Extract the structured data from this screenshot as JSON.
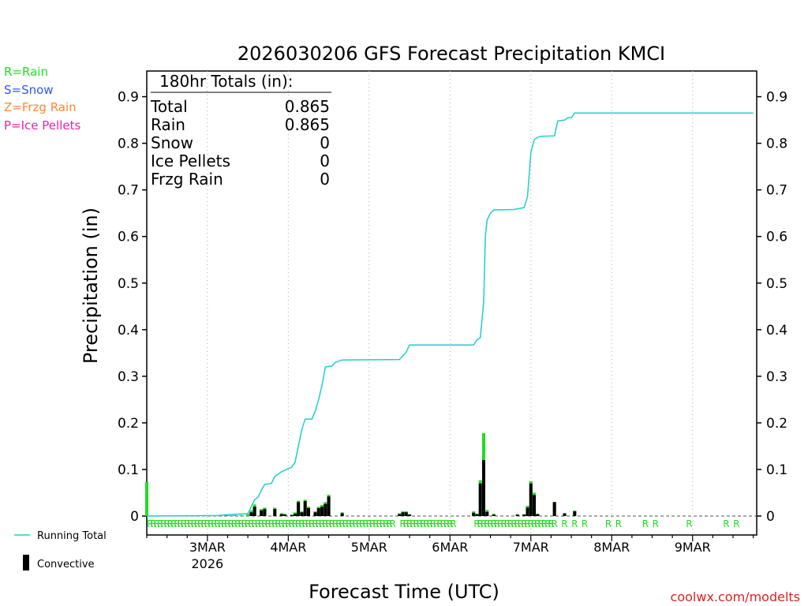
{
  "chart_data": {
    "type": "bar+line",
    "title": "2026030206 GFS Forecast Precipitation KMCI",
    "xlabel": "Forecast Time (UTC)",
    "ylabel": "Precipitation (in)",
    "ylim": [
      0,
      0.95
    ],
    "yticks": [
      0,
      0.1,
      0.2,
      0.3,
      0.4,
      0.5,
      0.6,
      0.7,
      0.8,
      0.9
    ],
    "ytick_labels": [
      "0",
      "0.1",
      "0.2",
      "0.3",
      "0.4",
      "0.5",
      "0.6",
      "0.7",
      "0.8",
      "0.9"
    ],
    "x_range_hours": [
      0,
      180
    ],
    "x_ticks": [
      {
        "hour": 18,
        "label": "3MAR",
        "sublabel": "2026"
      },
      {
        "hour": 42,
        "label": "4MAR",
        "sublabel": ""
      },
      {
        "hour": 66,
        "label": "5MAR",
        "sublabel": ""
      },
      {
        "hour": 90,
        "label": "6MAR",
        "sublabel": ""
      },
      {
        "hour": 114,
        "label": "7MAR",
        "sublabel": ""
      },
      {
        "hour": 138,
        "label": "8MAR",
        "sublabel": ""
      },
      {
        "hour": 162,
        "label": "9MAR",
        "sublabel": ""
      }
    ],
    "grid": "vertical-dotted",
    "legend_left": [
      {
        "label": "R=Rain",
        "color": "#22dd22"
      },
      {
        "label": "S=Snow",
        "color": "#3355ff"
      },
      {
        "label": "Z=Frzg Rain",
        "color": "#ff8833"
      },
      {
        "label": "P=Ice Pellets",
        "color": "#ee22aa"
      }
    ],
    "legend_bottom": [
      {
        "label": "Running Total",
        "kind": "line",
        "color": "#22cccc"
      },
      {
        "label": "Convective",
        "kind": "bar",
        "color": "#000000"
      }
    ],
    "totals_box": {
      "header": "180hr Totals (in):",
      "rows": [
        {
          "label": "Total",
          "value": "0.865"
        },
        {
          "label": "Rain",
          "value": "0.865"
        },
        {
          "label": "Snow",
          "value": "0"
        },
        {
          "label": "Ice Pellets",
          "value": "0"
        },
        {
          "label": "Frzg Rain",
          "value": "0"
        }
      ]
    },
    "running_total": [
      [
        0,
        0
      ],
      [
        21,
        0.001
      ],
      [
        24,
        0.003
      ],
      [
        30,
        0.005
      ],
      [
        31,
        0.02
      ],
      [
        32,
        0.035
      ],
      [
        33,
        0.04
      ],
      [
        34,
        0.055
      ],
      [
        35,
        0.068
      ],
      [
        37,
        0.07
      ],
      [
        38,
        0.085
      ],
      [
        40,
        0.095
      ],
      [
        42,
        0.102
      ],
      [
        43,
        0.105
      ],
      [
        44,
        0.115
      ],
      [
        45,
        0.15
      ],
      [
        46,
        0.185
      ],
      [
        47,
        0.208
      ],
      [
        49,
        0.208
      ],
      [
        50,
        0.225
      ],
      [
        51,
        0.25
      ],
      [
        52,
        0.28
      ],
      [
        53,
        0.32
      ],
      [
        55,
        0.322
      ],
      [
        56,
        0.33
      ],
      [
        58,
        0.335
      ],
      [
        75,
        0.336
      ],
      [
        77,
        0.352
      ],
      [
        78,
        0.367
      ],
      [
        84,
        0.367
      ],
      [
        97,
        0.367
      ],
      [
        98,
        0.378
      ],
      [
        99,
        0.383
      ],
      [
        100,
        0.46
      ],
      [
        100.5,
        0.6
      ],
      [
        101,
        0.635
      ],
      [
        102,
        0.65
      ],
      [
        103,
        0.657
      ],
      [
        109,
        0.658
      ],
      [
        112,
        0.662
      ],
      [
        113,
        0.685
      ],
      [
        114,
        0.78
      ],
      [
        115,
        0.808
      ],
      [
        116,
        0.813
      ],
      [
        117,
        0.815
      ],
      [
        121,
        0.816
      ],
      [
        122,
        0.848
      ],
      [
        124,
        0.85
      ],
      [
        125,
        0.855
      ],
      [
        126,
        0.855
      ],
      [
        127,
        0.865
      ],
      [
        180,
        0.865
      ]
    ],
    "precip_bars": [
      [
        0,
        0.073,
        0
      ],
      [
        22,
        0.002,
        0
      ],
      [
        24,
        0.002,
        0
      ],
      [
        26,
        0.002,
        0
      ],
      [
        28,
        0.002,
        0
      ],
      [
        30,
        0.005,
        0
      ],
      [
        31,
        0.012,
        0.008
      ],
      [
        32,
        0.025,
        0.02
      ],
      [
        34,
        0.015,
        0.012
      ],
      [
        35,
        0.018,
        0.015
      ],
      [
        38,
        0.018,
        0.015
      ],
      [
        40,
        0.006,
        0.004
      ],
      [
        41,
        0.005,
        0.003
      ],
      [
        43,
        0.003,
        0.002
      ],
      [
        44,
        0.008,
        0.005
      ],
      [
        45,
        0.033,
        0.03
      ],
      [
        46,
        0.01,
        0.008
      ],
      [
        47,
        0.035,
        0.032
      ],
      [
        48,
        0.02,
        0.017
      ],
      [
        50,
        0.01,
        0.008
      ],
      [
        51,
        0.02,
        0.017
      ],
      [
        52,
        0.024,
        0.02
      ],
      [
        53,
        0.03,
        0.026
      ],
      [
        54,
        0.046,
        0.042
      ],
      [
        58,
        0.008,
        0.006
      ],
      [
        75,
        0.006,
        0.004
      ],
      [
        76,
        0.01,
        0.008
      ],
      [
        77,
        0.01,
        0.008
      ],
      [
        78,
        0.004,
        0.003
      ],
      [
        97,
        0.01,
        0.007
      ],
      [
        98,
        0.005,
        0.004
      ],
      [
        99,
        0.077,
        0.07
      ],
      [
        100,
        0.178,
        0.12
      ],
      [
        101,
        0.013,
        0.009
      ],
      [
        103,
        0.005,
        0.003
      ],
      [
        110,
        0.004,
        0.003
      ],
      [
        112,
        0.004,
        0.003
      ],
      [
        113,
        0.022,
        0.018
      ],
      [
        114,
        0.075,
        0.07
      ],
      [
        115,
        0.05,
        0.045
      ],
      [
        116,
        0.005,
        0.004
      ],
      [
        121,
        0.03,
        0.03
      ],
      [
        124,
        0.006,
        0.006
      ],
      [
        127,
        0.012,
        0.01
      ]
    ],
    "ptype_rows": [
      {
        "from": 1,
        "to": 73,
        "label": "R"
      },
      {
        "from": 76,
        "to": 91,
        "label": "R"
      },
      {
        "from": 98,
        "to": 121,
        "label": "R"
      }
    ],
    "ptype_markers": [
      {
        "hour": 124,
        "label": "R"
      },
      {
        "hour": 127,
        "label": "R"
      },
      {
        "hour": 130,
        "label": "R"
      },
      {
        "hour": 137,
        "label": "R"
      },
      {
        "hour": 140,
        "label": "R"
      },
      {
        "hour": 148,
        "label": "R"
      },
      {
        "hour": 151,
        "label": "R"
      },
      {
        "hour": 161,
        "label": "R"
      },
      {
        "hour": 172,
        "label": "R"
      },
      {
        "hour": 175,
        "label": "R"
      }
    ],
    "source": "coolwx.com/modelts",
    "colors": {
      "running_total": "#22cccc",
      "total_bar": "#22dd22",
      "convective_bar": "#000000",
      "rain_marker": "#22dd22",
      "grid": "#aaaaaa",
      "source": "#dd2222"
    }
  }
}
